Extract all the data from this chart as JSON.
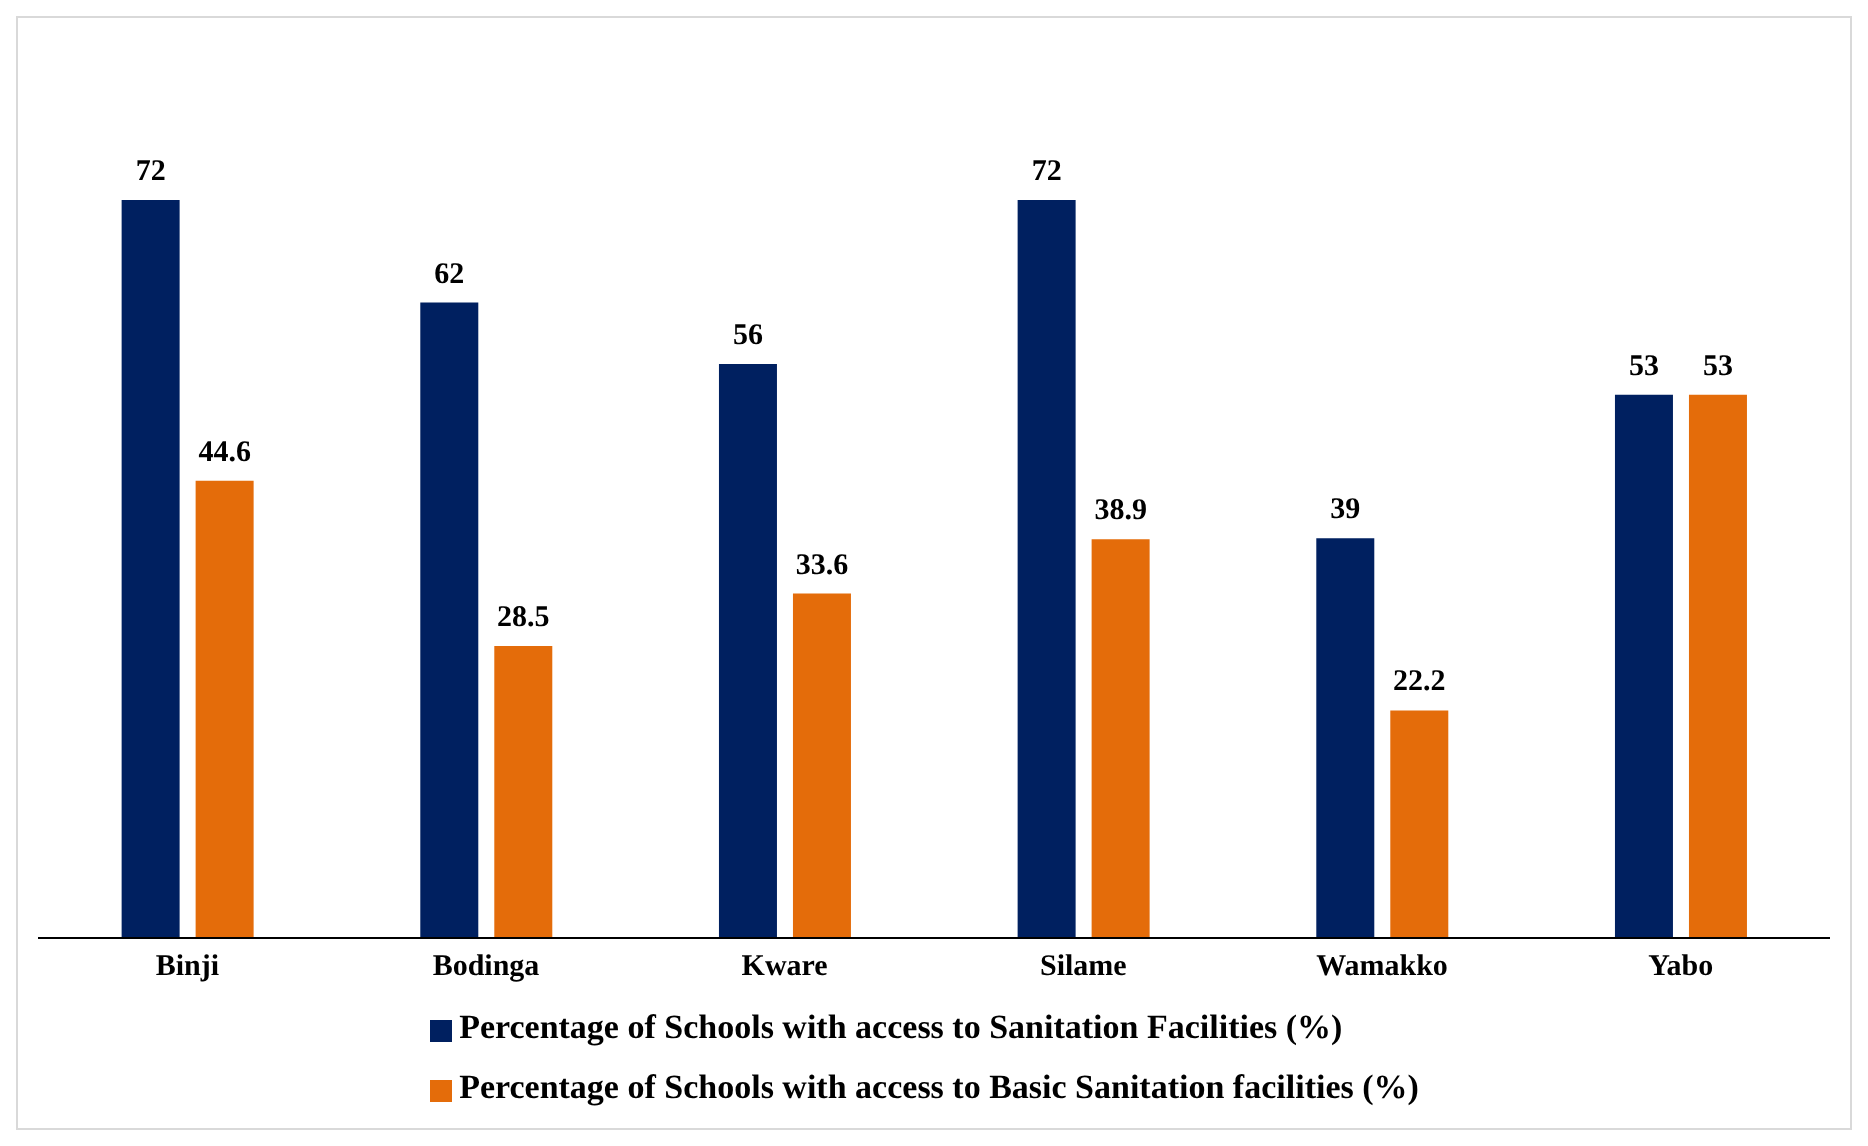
{
  "chart_data": {
    "type": "bar",
    "categories": [
      "Binji",
      "Bodinga",
      "Kware",
      "Silame",
      "Wamakko",
      "Yabo"
    ],
    "series": [
      {
        "name": "Percentage of Schools with access to Sanitation Facilities (%)",
        "color": "#002060",
        "values": [
          72,
          62,
          56,
          72,
          39,
          53
        ]
      },
      {
        "name": "Percentage of Schools with access to Basic Sanitation facilities (%)",
        "color": "#e46c0a",
        "values": [
          44.6,
          28.5,
          33.6,
          38.9,
          22.2,
          53
        ]
      }
    ],
    "data_labels": true,
    "legend": "bottom",
    "grid": false,
    "tick_labels": "x"
  }
}
